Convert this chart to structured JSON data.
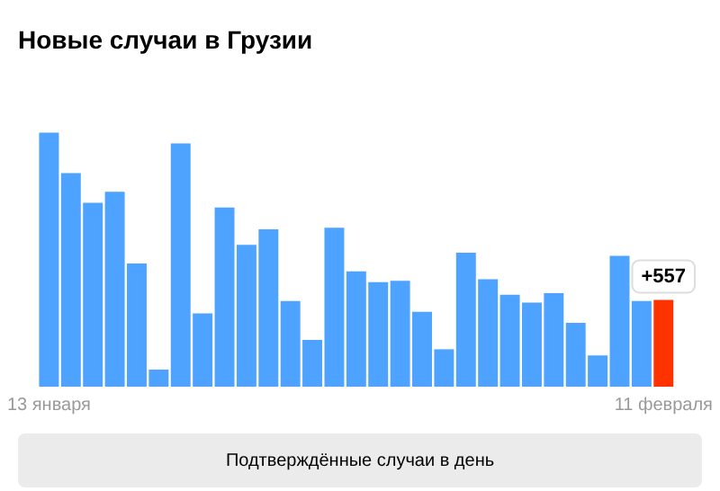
{
  "chart_data": {
    "type": "bar",
    "title": "Новые случаи в Грузии",
    "categories": [
      "13 января",
      null,
      null,
      null,
      null,
      null,
      null,
      null,
      null,
      null,
      null,
      null,
      null,
      null,
      null,
      null,
      null,
      null,
      null,
      null,
      null,
      null,
      null,
      null,
      null,
      null,
      null,
      null,
      "11 февраля"
    ],
    "values": [
      1630,
      1370,
      1180,
      1250,
      790,
      110,
      1560,
      470,
      1150,
      910,
      1010,
      550,
      300,
      1020,
      740,
      670,
      680,
      480,
      240,
      860,
      690,
      590,
      540,
      600,
      410,
      200,
      840,
      550,
      557
    ],
    "colors": [
      "#4da3ff",
      "#4da3ff",
      "#4da3ff",
      "#4da3ff",
      "#4da3ff",
      "#4da3ff",
      "#4da3ff",
      "#4da3ff",
      "#4da3ff",
      "#4da3ff",
      "#4da3ff",
      "#4da3ff",
      "#4da3ff",
      "#4da3ff",
      "#4da3ff",
      "#4da3ff",
      "#4da3ff",
      "#4da3ff",
      "#4da3ff",
      "#4da3ff",
      "#4da3ff",
      "#4da3ff",
      "#4da3ff",
      "#4da3ff",
      "#4da3ff",
      "#4da3ff",
      "#4da3ff",
      "#4da3ff",
      "#ff3300"
    ],
    "value_labels": [
      null,
      null,
      null,
      null,
      null,
      null,
      null,
      null,
      null,
      null,
      null,
      null,
      null,
      null,
      null,
      null,
      null,
      null,
      null,
      null,
      null,
      null,
      null,
      null,
      null,
      null,
      null,
      null,
      "+557"
    ],
    "annotations": [
      "Подтверждённые случаи в день"
    ],
    "grid": false,
    "legend": false
  }
}
